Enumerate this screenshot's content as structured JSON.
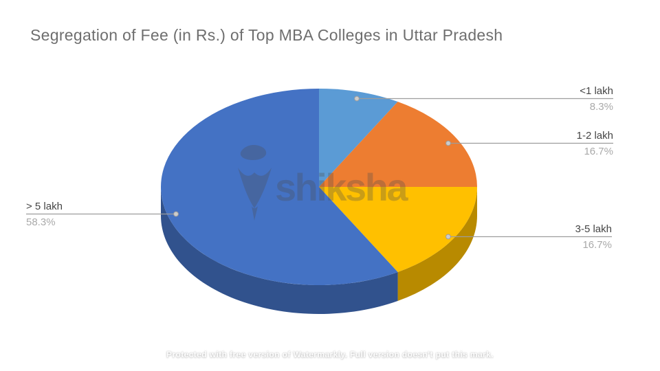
{
  "watermark": {
    "center_text": "shiksha",
    "center_logo_icon": "shiksha-logo",
    "bottom_text": "Protected with free version of Watermarkly. Full version doesn't put this mark."
  },
  "chart_data": {
    "type": "pie",
    "style": "3d",
    "title": "Segregation of Fee (in Rs.) of Top MBA Colleges in Uttar Pradesh",
    "categories": [
      "<1 lakh",
      "1-2 lakh",
      "3-5 lakh",
      "> 5 lakh"
    ],
    "values": [
      8.3,
      16.7,
      16.7,
      58.3
    ],
    "pct_labels": [
      "8.3%",
      "16.7%",
      "16.7%",
      "58.3%"
    ],
    "colors": [
      "#5B9BD5",
      "#ED7D31",
      "#FFC000",
      "#4472C4"
    ],
    "start_angle_deg": 0,
    "direction": "clockwise",
    "legend": "none",
    "label_style": "outside callouts with gray leader lines and end dots",
    "leader_line_color": "#9d9d9d",
    "label_color": "#444444",
    "percent_color": "#a9a9a9",
    "title_color": "#6e6e6e"
  }
}
